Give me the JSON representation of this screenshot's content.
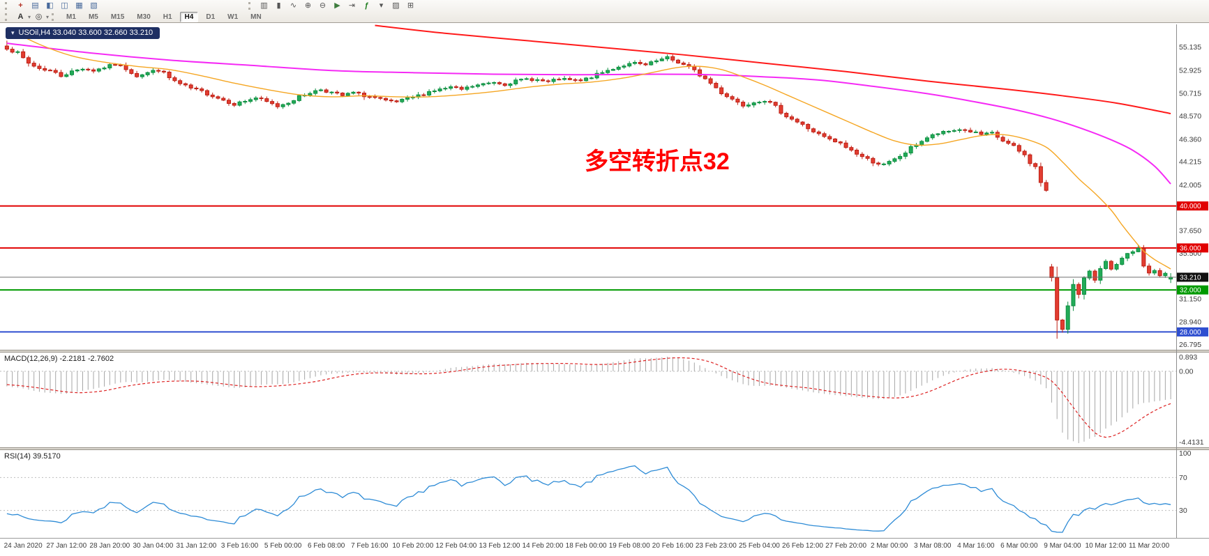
{
  "window": {
    "symbol_info": "USOil,H4 33.040 33.600 32.660 33.210",
    "expand_glyph": "▾"
  },
  "toolbar": {
    "standard_icons": [
      {
        "name": "new-order-icon",
        "glyph": "+",
        "color": "#b33226",
        "bold": true
      },
      {
        "name": "market-watch-icon",
        "glyph": "▤",
        "color": "#47699b"
      },
      {
        "name": "data-window-icon",
        "glyph": "◧",
        "color": "#47699b"
      },
      {
        "name": "navigator-icon",
        "glyph": "◫",
        "color": "#47699b"
      },
      {
        "name": "terminal-icon",
        "glyph": "▦",
        "color": "#47699b"
      },
      {
        "name": "new-chart-icon",
        "glyph": "▧",
        "color": "#47699b"
      }
    ],
    "chart_icons": [
      {
        "name": "bar-chart-mode-icon",
        "glyph": "▥",
        "color": "#555555"
      },
      {
        "name": "candlestick-mode-icon",
        "glyph": "▮",
        "color": "#555555"
      },
      {
        "name": "line-chart-mode-icon",
        "glyph": "∿",
        "color": "#555555"
      },
      {
        "name": "zoom-in-icon",
        "glyph": "⊕",
        "color": "#555555"
      },
      {
        "name": "zoom-out-icon",
        "glyph": "⊖",
        "color": "#555555"
      },
      {
        "name": "auto-scroll-icon",
        "glyph": "▶",
        "color": "#3f7d3f"
      },
      {
        "name": "chart-shift-icon",
        "glyph": "⇥",
        "color": "#555555"
      },
      {
        "name": "indicators-icon",
        "glyph": "ƒ",
        "color": "#1f7d1f",
        "bold": true
      },
      {
        "name": "periods-list-icon",
        "glyph": "▾",
        "color": "#555555"
      },
      {
        "name": "templates-icon",
        "glyph": "▨",
        "color": "#555555"
      },
      {
        "name": "tile-windows-icon",
        "glyph": "⊞",
        "color": "#555555"
      }
    ],
    "line_study_icons": [
      {
        "name": "text-label-icon",
        "glyph": "A",
        "color": "#333333",
        "bold": true,
        "caret": "▾"
      },
      {
        "name": "crosshair-icon",
        "glyph": "◎",
        "color": "#333333",
        "caret": "▾"
      }
    ],
    "periods": [
      "M1",
      "M5",
      "M15",
      "M30",
      "H1",
      "H4",
      "D1",
      "W1",
      "MN"
    ],
    "active_period": "H4"
  },
  "chart_data": {
    "type": "candlestick",
    "symbol": "USOil",
    "timeframe": "H4",
    "bar_count": 216,
    "seed": 7,
    "last_candle": [
      33.04,
      33.6,
      32.66,
      33.21
    ],
    "price_keyframes": [
      [
        0,
        55.1
      ],
      [
        2,
        54.5
      ],
      [
        4,
        53.6
      ],
      [
        6,
        53.1
      ],
      [
        8,
        52.9
      ],
      [
        10,
        52.4
      ],
      [
        12,
        52.8
      ],
      [
        14,
        53.1
      ],
      [
        16,
        52.9
      ],
      [
        18,
        53.2
      ],
      [
        20,
        53.5
      ],
      [
        22,
        53.1
      ],
      [
        24,
        52.4
      ],
      [
        26,
        52.7
      ],
      [
        28,
        53.0
      ],
      [
        30,
        52.2
      ],
      [
        32,
        51.6
      ],
      [
        34,
        51.2
      ],
      [
        36,
        50.9
      ],
      [
        38,
        50.5
      ],
      [
        40,
        50.1
      ],
      [
        42,
        49.7
      ],
      [
        44,
        50.0
      ],
      [
        46,
        50.3
      ],
      [
        48,
        49.9
      ],
      [
        50,
        49.5
      ],
      [
        52,
        49.9
      ],
      [
        54,
        50.4
      ],
      [
        56,
        50.8
      ],
      [
        58,
        51.1
      ],
      [
        60,
        50.8
      ],
      [
        62,
        50.5
      ],
      [
        64,
        50.8
      ],
      [
        66,
        50.5
      ],
      [
        68,
        50.3
      ],
      [
        70,
        50.0
      ],
      [
        72,
        49.9
      ],
      [
        74,
        50.2
      ],
      [
        76,
        50.5
      ],
      [
        78,
        50.9
      ],
      [
        80,
        51.1
      ],
      [
        82,
        51.3
      ],
      [
        84,
        51.1
      ],
      [
        86,
        51.4
      ],
      [
        88,
        51.6
      ],
      [
        90,
        51.8
      ],
      [
        92,
        51.6
      ],
      [
        94,
        51.9
      ],
      [
        96,
        52.1
      ],
      [
        98,
        52.0
      ],
      [
        100,
        51.8
      ],
      [
        102,
        52.1
      ],
      [
        104,
        52.0
      ],
      [
        106,
        51.9
      ],
      [
        108,
        52.3
      ],
      [
        110,
        52.7
      ],
      [
        112,
        53.1
      ],
      [
        114,
        53.4
      ],
      [
        116,
        53.6
      ],
      [
        118,
        53.4
      ],
      [
        120,
        53.8
      ],
      [
        122,
        54.1
      ],
      [
        124,
        53.7
      ],
      [
        126,
        53.2
      ],
      [
        128,
        52.5
      ],
      [
        130,
        51.7
      ],
      [
        132,
        50.8
      ],
      [
        134,
        50.2
      ],
      [
        136,
        49.6
      ],
      [
        138,
        49.9
      ],
      [
        140,
        50.1
      ],
      [
        142,
        49.4
      ],
      [
        144,
        48.6
      ],
      [
        146,
        48.0
      ],
      [
        148,
        47.4
      ],
      [
        150,
        46.8
      ],
      [
        152,
        46.3
      ],
      [
        154,
        45.9
      ],
      [
        156,
        45.3
      ],
      [
        158,
        44.7
      ],
      [
        160,
        44.2
      ],
      [
        162,
        43.9
      ],
      [
        164,
        44.4
      ],
      [
        166,
        45.1
      ],
      [
        168,
        45.9
      ],
      [
        170,
        46.5
      ],
      [
        172,
        46.9
      ],
      [
        174,
        47.1
      ],
      [
        176,
        47.3
      ],
      [
        178,
        47.1
      ],
      [
        180,
        46.8
      ],
      [
        182,
        46.9
      ],
      [
        184,
        46.2
      ],
      [
        186,
        45.6
      ],
      [
        188,
        44.8
      ],
      [
        190,
        43.6
      ],
      [
        191,
        42.3
      ],
      [
        192,
        41.4
      ],
      [
        193,
        32.9
      ],
      [
        194,
        29.2
      ],
      [
        195,
        28.4
      ],
      [
        196,
        30.8
      ],
      [
        197,
        32.4
      ],
      [
        198,
        31.4
      ],
      [
        199,
        32.8
      ],
      [
        200,
        33.9
      ],
      [
        201,
        33.1
      ],
      [
        202,
        34.2
      ],
      [
        203,
        34.6
      ],
      [
        204,
        33.8
      ],
      [
        205,
        34.3
      ],
      [
        206,
        34.9
      ],
      [
        207,
        35.3
      ],
      [
        208,
        35.7
      ],
      [
        209,
        35.6
      ],
      [
        210,
        34.4
      ],
      [
        211,
        33.6
      ],
      [
        212,
        33.9
      ],
      [
        213,
        33.3
      ],
      [
        214,
        33.5
      ],
      [
        215,
        33.21
      ]
    ],
    "gap_opens": {
      "193": 34.2
    },
    "forced_lows": {
      "194": 27.35
    },
    "forced_highs": {
      "0": 55.75,
      "209": 36.3
    },
    "candle_colors": {
      "up_stroke": "#0e8f41",
      "up_fill": "#22ab58",
      "down_stroke": "#bd1f14",
      "down_fill": "#e23d31"
    },
    "y_axis": {
      "price_max": 57.3,
      "price_min": 26.3,
      "labels": [
        [
          "55.135",
          55.135
        ],
        [
          "52.925",
          52.925
        ],
        [
          "50.715",
          50.715
        ],
        [
          "48.570",
          48.57
        ],
        [
          "46.360",
          46.36
        ],
        [
          "44.215",
          44.215
        ],
        [
          "42.005",
          42.005
        ],
        [
          "37.650",
          37.65
        ],
        [
          "35.500",
          35.5
        ],
        [
          "31.150",
          31.15
        ],
        [
          "28.940",
          28.94
        ],
        [
          "26.795",
          26.795
        ]
      ],
      "text_color": "#3b3b3b"
    },
    "hlines": [
      {
        "price": 40.0,
        "label": "40.000",
        "color": "#e10000",
        "width": 2,
        "role": "resistance"
      },
      {
        "price": 36.0,
        "label": "36.000",
        "color": "#e10000",
        "width": 2,
        "role": "resistance"
      },
      {
        "price": 32.0,
        "label": "32.000",
        "color": "#009a00",
        "width": 2,
        "role": "support"
      },
      {
        "price": 28.0,
        "label": "28.000",
        "color": "#2f4fd0",
        "width": 2,
        "role": "support"
      },
      {
        "price": 33.21,
        "label": "33.210",
        "color": "#6f6f6f",
        "width": 1,
        "badge_bg": "#111111",
        "role": "current-price"
      }
    ],
    "moving_averages": [
      {
        "name": "ma-slow-red",
        "color": "#ff1a1a",
        "width": 2,
        "points": [
          [
            68,
            57.2
          ],
          [
            80,
            56.5
          ],
          [
            95,
            55.8
          ],
          [
            110,
            55.1
          ],
          [
            125,
            54.4
          ],
          [
            140,
            53.6
          ],
          [
            155,
            52.8
          ],
          [
            170,
            51.9
          ],
          [
            185,
            51.1
          ],
          [
            195,
            50.5
          ],
          [
            205,
            49.8
          ],
          [
            215,
            48.8
          ]
        ]
      },
      {
        "name": "ma-mid-magenta",
        "color": "#f52af5",
        "width": 2,
        "points": [
          [
            0,
            55.5
          ],
          [
            15,
            54.6
          ],
          [
            30,
            53.9
          ],
          [
            45,
            53.4
          ],
          [
            60,
            52.9
          ],
          [
            75,
            52.7
          ],
          [
            90,
            52.55
          ],
          [
            105,
            52.5
          ],
          [
            120,
            52.55
          ],
          [
            130,
            52.5
          ],
          [
            140,
            52.3
          ],
          [
            150,
            52.0
          ],
          [
            160,
            51.4
          ],
          [
            170,
            50.7
          ],
          [
            178,
            50.0
          ],
          [
            186,
            49.2
          ],
          [
            193,
            48.3
          ],
          [
            199,
            47.3
          ],
          [
            204,
            46.3
          ],
          [
            208,
            45.3
          ],
          [
            212,
            43.8
          ],
          [
            215,
            42.1
          ]
        ]
      },
      {
        "name": "ma-fast-orange",
        "color": "#f5a623",
        "width": 1.4,
        "points": [
          [
            0,
            56.9
          ],
          [
            6,
            55.4
          ],
          [
            12,
            54.3
          ],
          [
            18,
            53.7
          ],
          [
            24,
            53.3
          ],
          [
            30,
            53.0
          ],
          [
            36,
            52.4
          ],
          [
            42,
            51.7
          ],
          [
            48,
            51.1
          ],
          [
            54,
            50.6
          ],
          [
            60,
            50.4
          ],
          [
            66,
            50.5
          ],
          [
            72,
            50.4
          ],
          [
            78,
            50.4
          ],
          [
            84,
            50.6
          ],
          [
            90,
            50.9
          ],
          [
            96,
            51.3
          ],
          [
            102,
            51.6
          ],
          [
            108,
            51.8
          ],
          [
            114,
            52.2
          ],
          [
            120,
            52.8
          ],
          [
            124,
            53.2
          ],
          [
            128,
            53.3
          ],
          [
            132,
            53.0
          ],
          [
            136,
            52.3
          ],
          [
            140,
            51.5
          ],
          [
            144,
            50.6
          ],
          [
            148,
            49.7
          ],
          [
            152,
            48.8
          ],
          [
            156,
            47.9
          ],
          [
            160,
            47.0
          ],
          [
            164,
            46.2
          ],
          [
            168,
            45.8
          ],
          [
            172,
            45.9
          ],
          [
            176,
            46.3
          ],
          [
            180,
            46.7
          ],
          [
            184,
            46.8
          ],
          [
            188,
            46.4
          ],
          [
            192,
            45.6
          ],
          [
            195,
            44.2
          ],
          [
            198,
            42.6
          ],
          [
            201,
            41.2
          ],
          [
            204,
            39.6
          ],
          [
            206,
            38.2
          ],
          [
            208,
            36.9
          ],
          [
            210,
            35.7
          ],
          [
            212,
            34.9
          ],
          [
            214,
            34.3
          ],
          [
            215,
            34.0
          ]
        ]
      }
    ],
    "annotation": {
      "text": "多空转折点32",
      "color": "#ff0000",
      "x_frac": 0.497,
      "price": 45.5,
      "font_size": 34
    },
    "time_axis": {
      "first_bar": 3,
      "bar_step": 8,
      "text_color": "#3b3b3b",
      "labels": [
        "24 Jan 2020",
        "27 Jan 12:00",
        "28 Jan 20:00",
        "30 Jan 04:00",
        "31 Jan 12:00",
        "3 Feb 16:00",
        "5 Feb 00:00",
        "6 Feb 08:00",
        "7 Feb 16:00",
        "10 Feb 20:00",
        "12 Feb 04:00",
        "13 Feb 12:00",
        "14 Feb 20:00",
        "18 Feb 00:00",
        "19 Feb 08:00",
        "20 Feb 16:00",
        "23 Feb 23:00",
        "25 Feb 04:00",
        "26 Feb 12:00",
        "27 Feb 20:00",
        "2 Mar 00:00",
        "3 Mar 08:00",
        "4 Mar 16:00",
        "6 Mar 00:00",
        "9 Mar 04:00",
        "10 Mar 12:00",
        "11 Mar 20:00"
      ]
    },
    "macd": {
      "label": "MACD(12,26,9) -2.2181 -2.7602",
      "fast": 12,
      "slow": 26,
      "signal_period": 9,
      "value_main": -2.2181,
      "value_signal": -2.7602,
      "axis_labels": [
        "0.893",
        "0.00",
        "-4.4131"
      ],
      "top_val": 0.893,
      "bottom_val": -4.4131,
      "hist_color": "#a6a6a6",
      "signal_color": "#dd2222"
    },
    "rsi": {
      "label": "RSI(14) 39.5170",
      "period": 14,
      "value": 39.517,
      "axis_labels": [
        "100",
        "70",
        "30"
      ],
      "levels": [
        70,
        30
      ],
      "line_color": "#2d8bd6"
    }
  }
}
